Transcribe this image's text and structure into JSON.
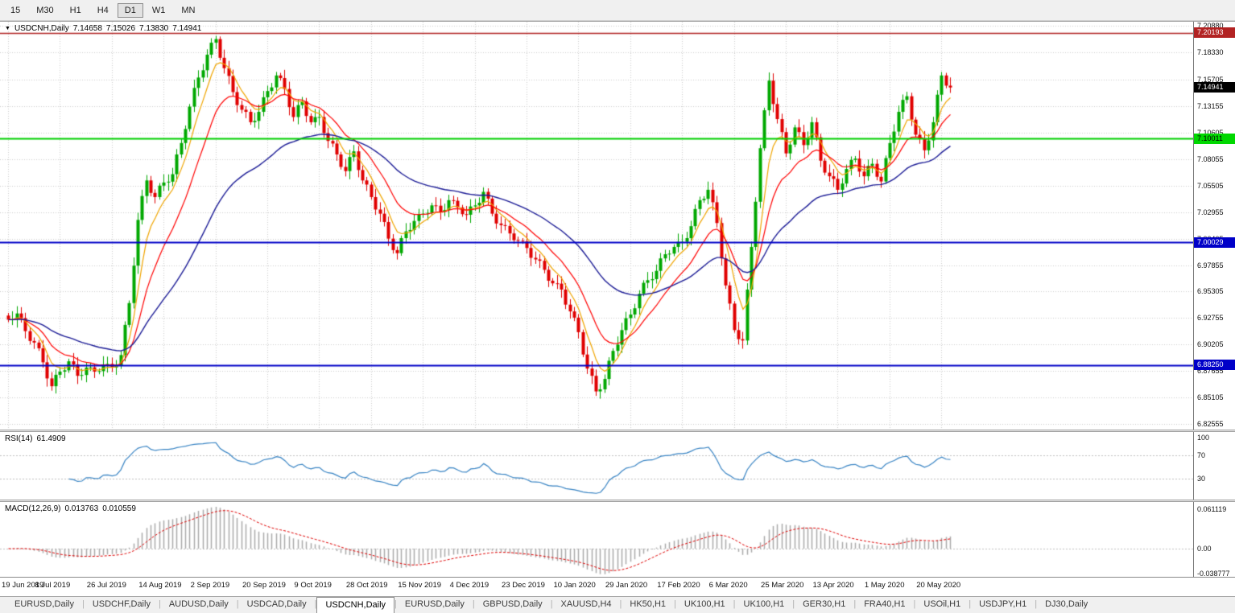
{
  "toolbar": {
    "timeframes": [
      {
        "label": "15",
        "active": false
      },
      {
        "label": "M30",
        "active": false
      },
      {
        "label": "H1",
        "active": false
      },
      {
        "label": "H4",
        "active": false
      },
      {
        "label": "D1",
        "active": true
      },
      {
        "label": "W1",
        "active": false
      },
      {
        "label": "MN",
        "active": false
      }
    ]
  },
  "chart": {
    "collapse_glyph": "▼",
    "symbol": "USDCNH,Daily",
    "ohlc": {
      "open": "7.14658",
      "high": "7.15026",
      "low": "7.13830",
      "close": "7.14941"
    },
    "price_axis": [
      "7.20880",
      "7.18330",
      "7.15705",
      "7.13155",
      "7.10605",
      "7.08055",
      "7.05505",
      "7.02955",
      "7.00405",
      "6.97855",
      "6.95305",
      "6.92755",
      "6.90205",
      "6.87655",
      "6.85105",
      "6.82555"
    ],
    "levels": [
      {
        "label": "7.20193",
        "value": 7.20193,
        "line_color": "#B22222",
        "bg": "#B22222",
        "text": "#FFFFFF",
        "width": 1.5
      },
      {
        "label": "7.10011",
        "value": 7.10011,
        "line_color": "#00D000",
        "bg": "#00D800",
        "text": "#000000",
        "width": 2
      },
      {
        "label": "7.00029",
        "value": 7.00029,
        "line_color": "#0000C8",
        "bg": "#0000C8",
        "text": "#FFFFFF",
        "width": 2
      },
      {
        "label": "6.88250",
        "value": 6.8825,
        "line_color": "#0000C8",
        "bg": "#0000C8",
        "text": "#FFFFFF",
        "width": 2
      }
    ],
    "current_price": {
      "label": "7.14941",
      "value": 7.14941,
      "bg": "#000000",
      "text": "#FFFFFF"
    },
    "dates": [
      "19 Jun 2019",
      "8 Jul 2019",
      "26 Jul 2019",
      "14 Aug 2019",
      "2 Sep 2019",
      "20 Sep 2019",
      "9 Oct 2019",
      "28 Oct 2019",
      "15 Nov 2019",
      "4 Dec 2019",
      "23 Dec 2019",
      "10 Jan 2020",
      "29 Jan 2020",
      "17 Feb 2020",
      "6 Mar 2020",
      "25 Mar 2020",
      "13 Apr 2020",
      "1 May 2020",
      "20 May 2020"
    ],
    "colors": {
      "up": "#00A800",
      "down": "#E00000",
      "ma_fast": "#F0A500",
      "ma_mid": "#FF0000",
      "ma_slow": "#1C1C96",
      "grid": "#CCCCCC",
      "rsi_line": "#3884C4",
      "macd_hist": "#AAAAAA",
      "macd_signal": "#E00000"
    }
  },
  "rsi": {
    "name": "RSI(14)",
    "value": "61.4909",
    "axis": [
      "100",
      "70",
      "30"
    ],
    "guide_levels": [
      70,
      30
    ]
  },
  "macd": {
    "name": "MACD(12,26,9)",
    "value1": "0.013763",
    "value2": "0.010559",
    "axis": [
      "0.061119",
      "0.00",
      "-0.038777"
    ]
  },
  "tabs": [
    {
      "label": "EURUSD,Daily",
      "active": false
    },
    {
      "label": "USDCHF,Daily",
      "active": false
    },
    {
      "label": "AUDUSD,Daily",
      "active": false
    },
    {
      "label": "USDCAD,Daily",
      "active": false
    },
    {
      "label": "USDCNH,Daily",
      "active": true
    },
    {
      "label": "EURUSD,Daily",
      "active": false
    },
    {
      "label": "GBPUSD,Daily",
      "active": false
    },
    {
      "label": "XAUUSD,H4",
      "active": false
    },
    {
      "label": "HK50,H1",
      "active": false
    },
    {
      "label": "UK100,H1",
      "active": false
    },
    {
      "label": "UK100,H1",
      "active": false
    },
    {
      "label": "GER30,H1",
      "active": false
    },
    {
      "label": "FRA40,H1",
      "active": false
    },
    {
      "label": "USOil,H1",
      "active": false
    },
    {
      "label": "USDJPY,H1",
      "active": false
    },
    {
      "label": "DJ30,Daily",
      "active": false
    }
  ],
  "chart_data": {
    "type": "candlestick",
    "symbol": "USDCNH",
    "timeframe": "Daily",
    "x_range": [
      "19 Jun 2019",
      "20 May 2020"
    ],
    "y_range": [
      6.82555,
      7.2088
    ],
    "ohlc_current": {
      "open": 7.14658,
      "high": 7.15026,
      "low": 7.1383,
      "close": 7.14941
    },
    "horizontal_levels": [
      7.20193,
      7.10011,
      7.00029,
      6.8825
    ],
    "closes_approx": [
      6.926,
      6.932,
      6.915,
      6.904,
      6.885,
      6.862,
      6.876,
      6.886,
      6.872,
      6.88,
      6.876,
      6.883,
      6.88,
      6.892,
      6.942,
      7.022,
      7.06,
      7.044,
      7.058,
      7.066,
      7.096,
      7.131,
      7.159,
      7.181,
      7.196,
      7.168,
      7.145,
      7.128,
      7.116,
      7.126,
      7.146,
      7.161,
      7.148,
      7.121,
      7.136,
      7.116,
      7.121,
      7.098,
      7.085,
      7.069,
      7.088,
      7.06,
      7.044,
      7.028,
      7.004,
      6.99,
      7.011,
      7.021,
      7.028,
      7.036,
      7.03,
      7.041,
      7.034,
      7.027,
      7.036,
      7.049,
      7.028,
      7.017,
      7.009,
      7.002,
      6.995,
      6.984,
      6.974,
      6.961,
      6.955,
      6.934,
      6.914,
      6.879,
      6.857,
      6.869,
      6.896,
      6.916,
      6.931,
      6.951,
      6.964,
      6.973,
      6.989,
      6.996,
      7.001,
      7.016,
      7.041,
      7.051,
      7.019,
      6.959,
      6.916,
      6.906,
      6.996,
      7.091,
      7.156,
      7.119,
      7.086,
      7.111,
      7.094,
      7.116,
      7.079,
      7.064,
      7.051,
      7.071,
      7.081,
      7.064,
      7.076,
      7.059,
      7.096,
      7.126,
      7.141,
      7.104,
      7.089,
      7.116,
      7.161,
      7.14941
    ],
    "indicators": {
      "rsi": {
        "period": 14,
        "current": 61.4909,
        "scale": [
          30,
          70,
          100
        ]
      },
      "macd": {
        "params": [
          12,
          26,
          9
        ],
        "current": [
          0.013763,
          0.010559
        ],
        "scale": [
          -0.038777,
          0.0,
          0.061119
        ]
      }
    }
  }
}
